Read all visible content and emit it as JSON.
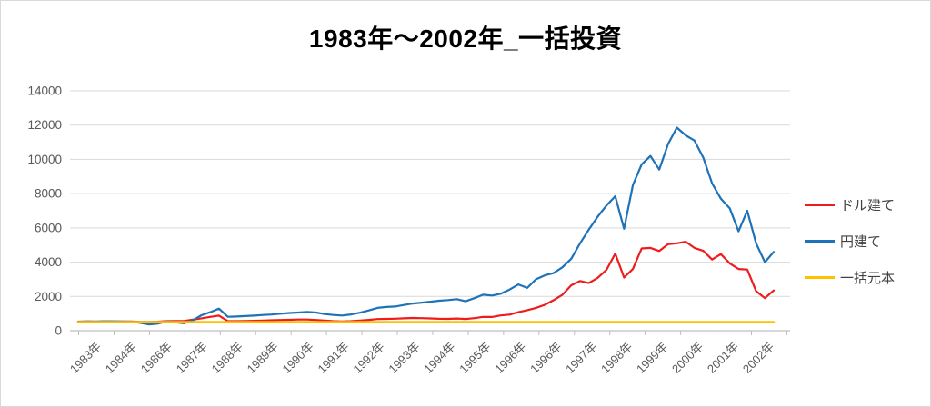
{
  "title": "1983年～2002年_一括投資",
  "chart_data": {
    "type": "line",
    "title": "1983年～2002年_一括投資",
    "xlabel": "",
    "ylabel": "",
    "ylim": [
      0,
      14000
    ],
    "y_ticks": [
      0,
      2000,
      4000,
      6000,
      8000,
      10000,
      12000,
      14000
    ],
    "x_tick_labels": [
      "1983年",
      "1984年",
      "1986年",
      "1987年",
      "1988年",
      "1989年",
      "1990年",
      "1991年",
      "1992年",
      "1993年",
      "1994年",
      "1995年",
      "1996年",
      "1996年",
      "1997年",
      "1998年",
      "1999年",
      "2000年",
      "2001年",
      "2002年"
    ],
    "x_tick_label_rotation": 45,
    "grid": "horizontal-only",
    "legend_position": "right-middle",
    "colors": {
      "grid": "#d9d9d9",
      "axis": "#bfbfbf",
      "tick_text": "#595959",
      "title_text": "#000000",
      "background": "#ffffff"
    },
    "series": [
      {
        "id": "usd",
        "name": "ドル建て",
        "color": "#ee1c1c",
        "values": [
          530,
          535,
          530,
          545,
          540,
          536,
          540,
          520,
          512,
          525,
          555,
          565,
          570,
          640,
          720,
          805,
          880,
          560,
          555,
          570,
          580,
          592,
          610,
          625,
          638,
          650,
          650,
          625,
          590,
          558,
          540,
          558,
          592,
          630,
          678,
          692,
          702,
          722,
          740,
          732,
          718,
          695,
          690,
          710,
          685,
          730,
          805,
          800,
          890,
          940,
          1080,
          1200,
          1330,
          1510,
          1780,
          2100,
          2650,
          2900,
          2780,
          3080,
          3550,
          4500,
          3100,
          3600,
          4800,
          4830,
          4650,
          5050,
          5100,
          5190,
          4830,
          4660,
          4150,
          4470,
          3930,
          3600,
          3570,
          2310,
          1900,
          2350
        ]
      },
      {
        "id": "jpy",
        "name": "円建て",
        "color": "#1e72b8",
        "values": [
          520,
          540,
          530,
          548,
          545,
          532,
          527,
          460,
          365,
          410,
          540,
          500,
          435,
          600,
          900,
          1080,
          1290,
          810,
          825,
          855,
          880,
          915,
          945,
          990,
          1035,
          1062,
          1090,
          1060,
          970,
          915,
          885,
          950,
          1050,
          1180,
          1330,
          1385,
          1410,
          1500,
          1585,
          1640,
          1690,
          1750,
          1785,
          1840,
          1720,
          1900,
          2100,
          2050,
          2160,
          2400,
          2700,
          2500,
          3000,
          3230,
          3360,
          3700,
          4200,
          5100,
          5900,
          6650,
          7300,
          7850,
          5950,
          8500,
          9700,
          10200,
          9400,
          10900,
          11850,
          11400,
          11100,
          10100,
          8600,
          7700,
          7150,
          5800,
          7000,
          5100,
          4000,
          4600
        ]
      },
      {
        "id": "principal",
        "name": "一括元本",
        "color": "#ffc000",
        "values": [
          500,
          500
        ]
      }
    ]
  }
}
